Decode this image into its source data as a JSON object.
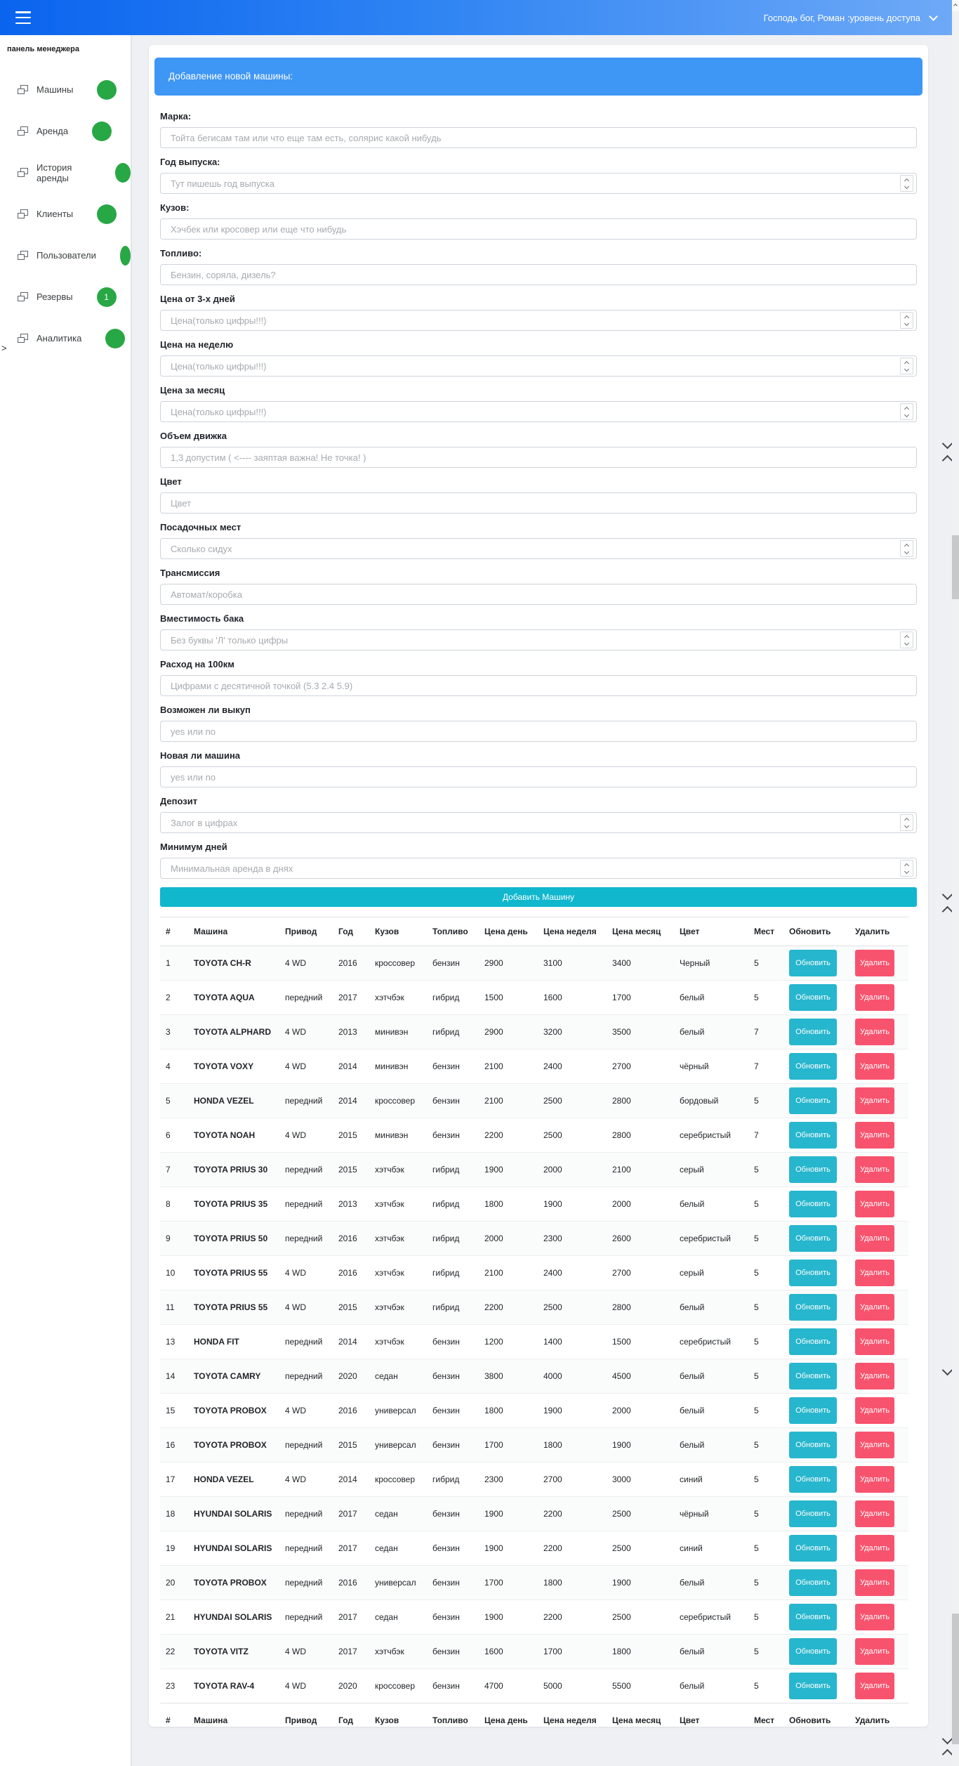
{
  "navbar": {
    "user_label": "Господь бог, Роман :уровень доступа"
  },
  "sidebar": {
    "title": "панель менеджера",
    "collapse_char": ">",
    "items": [
      {
        "label": "Машины"
      },
      {
        "label": "Аренда"
      },
      {
        "label": "История аренды"
      },
      {
        "label": "Клиенты"
      },
      {
        "label": "Пользователи"
      },
      {
        "label": "Резервы",
        "badge": "1"
      },
      {
        "label": "Аналитика"
      }
    ]
  },
  "form": {
    "title": "Добавление новой машины:",
    "submit_label": "Добавить Машину",
    "fields": [
      {
        "label": "Марка:",
        "placeholder": "Тойта бегисам там или что еще там есть, солярис какой нибудь",
        "type": "text"
      },
      {
        "label": "Год выпуска:",
        "placeholder": "Тут пишешь год выпуска",
        "type": "number"
      },
      {
        "label": "Кузов:",
        "placeholder": "Хэчбек или кросовер или еще что нибудь",
        "type": "text"
      },
      {
        "label": "Топливо:",
        "placeholder": "Бензин, соряла, дизель?",
        "type": "text"
      },
      {
        "label": "Цена от 3-х дней",
        "placeholder": "Цена(только цифры!!!)",
        "type": "number"
      },
      {
        "label": "Цена на неделю",
        "placeholder": "Цена(только цифры!!!)",
        "type": "number"
      },
      {
        "label": "Цена за месяц",
        "placeholder": "Цена(только цифры!!!)",
        "type": "number"
      },
      {
        "label": "Объем движка",
        "placeholder": "1,3 допустим ( <---- заяптая важна! Не точка! )",
        "type": "text"
      },
      {
        "label": "Цвет",
        "placeholder": "Цвет",
        "type": "text"
      },
      {
        "label": "Посадочных мест",
        "placeholder": "Сколько сидух",
        "type": "number"
      },
      {
        "label": "Трансмиссия",
        "placeholder": "Автомат/коробка",
        "type": "text"
      },
      {
        "label": "Вместимость бака",
        "placeholder": "Без буквы 'Л' только цифры",
        "type": "number"
      },
      {
        "label": "Расход на 100км",
        "placeholder": "Цифрами с десятичной точкой (5.3 2.4 5.9)",
        "type": "text"
      },
      {
        "label": "Возможен ли выкуп",
        "placeholder": "yes или no",
        "type": "text"
      },
      {
        "label": "Новая ли машина",
        "placeholder": "yes или no",
        "type": "text"
      },
      {
        "label": "Депозит",
        "placeholder": "Залог в цифрах",
        "type": "number"
      },
      {
        "label": "Минимум дней",
        "placeholder": "Минимальная аренда в днях",
        "type": "number"
      }
    ]
  },
  "table": {
    "headers": [
      "#",
      "Машина",
      "Привод",
      "Год",
      "Кузов",
      "Топливо",
      "Цена день",
      "Цена неделя",
      "Цена месяц",
      "Цвет",
      "Мест",
      "Обновить",
      "Удалить"
    ],
    "update_label": "Обновить",
    "delete_label": "Удалить",
    "rows": [
      {
        "cells": [
          "1",
          "TOYOTA CH-R",
          "4 WD",
          "2016",
          "кроссовер",
          "бензин",
          "2900",
          "3100",
          "3400",
          "Черный",
          "5"
        ]
      },
      {
        "cells": [
          "2",
          "TOYOTA AQUA",
          "передний",
          "2017",
          "хэтчбэк",
          "гибрид",
          "1500",
          "1600",
          "1700",
          "белый",
          "5"
        ]
      },
      {
        "cells": [
          "3",
          "TOYOTA ALPHARD",
          "4 WD",
          "2013",
          "минивэн",
          "гибрид",
          "2900",
          "3200",
          "3500",
          "белый",
          "7"
        ]
      },
      {
        "cells": [
          "4",
          "TOYOTA VOXY",
          "4 WD",
          "2014",
          "минивэн",
          "бензин",
          "2100",
          "2400",
          "2700",
          "чёрный",
          "7"
        ]
      },
      {
        "cells": [
          "5",
          "HONDA VEZEL",
          "передний",
          "2014",
          "кроссовер",
          "бензин",
          "2100",
          "2500",
          "2800",
          "бордовый",
          "5"
        ]
      },
      {
        "cells": [
          "6",
          "TOYOTA NOAH",
          "4 WD",
          "2015",
          "минивэн",
          "бензин",
          "2200",
          "2500",
          "2800",
          "серебристый",
          "7"
        ]
      },
      {
        "cells": [
          "7",
          "TOYOTA PRIUS 30",
          "передний",
          "2015",
          "хэтчбэк",
          "гибрид",
          "1900",
          "2000",
          "2100",
          "серый",
          "5"
        ]
      },
      {
        "cells": [
          "8",
          "TOYOTA PRIUS 35",
          "передний",
          "2013",
          "хэтчбэк",
          "гибрид",
          "1800",
          "1900",
          "2000",
          "белый",
          "5"
        ]
      },
      {
        "cells": [
          "9",
          "TOYOTA PRIUS 50",
          "передний",
          "2016",
          "хэтчбэк",
          "гибрид",
          "2000",
          "2300",
          "2600",
          "серебристый",
          "5"
        ]
      },
      {
        "cells": [
          "10",
          "TOYOTA PRIUS 55",
          "4 WD",
          "2016",
          "хэтчбэк",
          "гибрид",
          "2100",
          "2400",
          "2700",
          "серый",
          "5"
        ]
      },
      {
        "cells": [
          "11",
          "TOYOTA PRIUS 55",
          "4 WD",
          "2015",
          "хэтчбэк",
          "гибрид",
          "2200",
          "2500",
          "2800",
          "белый",
          "5"
        ]
      },
      {
        "cells": [
          "13",
          "HONDA FIT",
          "передний",
          "2014",
          "хэтчбэк",
          "бензин",
          "1200",
          "1400",
          "1500",
          "серебристый",
          "5"
        ]
      },
      {
        "cells": [
          "14",
          "TOYOTA CAMRY",
          "передний",
          "2020",
          "седан",
          "бензин",
          "3800",
          "4000",
          "4500",
          "белый",
          "5"
        ]
      },
      {
        "cells": [
          "15",
          "TOYOTA PROBOX",
          "4 WD",
          "2016",
          "универсал",
          "бензин",
          "1800",
          "1900",
          "2000",
          "белый",
          "5"
        ]
      },
      {
        "cells": [
          "16",
          "TOYOTA PROBOX",
          "передний",
          "2015",
          "универсал",
          "бензин",
          "1700",
          "1800",
          "1900",
          "белый",
          "5"
        ]
      },
      {
        "cells": [
          "17",
          "HONDA VEZEL",
          "4 WD",
          "2014",
          "кроссовер",
          "гибрид",
          "2300",
          "2700",
          "3000",
          "синий",
          "5"
        ]
      },
      {
        "cells": [
          "18",
          "HYUNDAI SOLARIS",
          "передний",
          "2017",
          "седан",
          "бензин",
          "1900",
          "2200",
          "2500",
          "чёрный",
          "5"
        ]
      },
      {
        "cells": [
          "19",
          "HYUNDAI SOLARIS",
          "передний",
          "2017",
          "седан",
          "бензин",
          "1900",
          "2200",
          "2500",
          "синий",
          "5"
        ]
      },
      {
        "cells": [
          "20",
          "TOYOTA PROBOX",
          "передний",
          "2016",
          "универсал",
          "бензин",
          "1700",
          "1800",
          "1900",
          "белый",
          "5"
        ]
      },
      {
        "cells": [
          "21",
          "HYUNDAI SOLARIS",
          "передний",
          "2017",
          "седан",
          "бензин",
          "1900",
          "2200",
          "2500",
          "серебристый",
          "5"
        ]
      },
      {
        "cells": [
          "22",
          "TOYOTA VITZ",
          "4 WD",
          "2017",
          "хэтчбэк",
          "бензин",
          "1600",
          "1700",
          "1800",
          "белый",
          "5"
        ]
      },
      {
        "cells": [
          "23",
          "TOYOTA RAV-4",
          "4 WD",
          "2020",
          "кроссовер",
          "бензин",
          "4700",
          "5000",
          "5500",
          "белый",
          "5"
        ]
      }
    ]
  },
  "colors": {
    "navbar_gradient_start": "#0a64ee",
    "navbar_gradient_end": "#6ea9f7",
    "panel_blue": "#3e96f5",
    "add_button_cyan": "#10b7cd",
    "update_button_cyan": "#26b6cd",
    "delete_button_pink": "#f8536e",
    "badge_green": "#28a745",
    "page_background": "#eef0f3"
  }
}
